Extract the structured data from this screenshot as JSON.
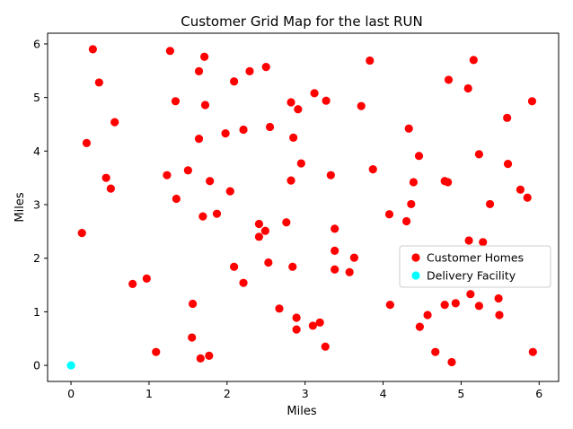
{
  "chart_data": {
    "type": "scatter",
    "title": "Customer Grid Map for the last RUN",
    "xlabel": "Miles",
    "ylabel": "Miles",
    "xlim": [
      -0.3,
      6.25
    ],
    "ylim": [
      -0.3,
      6.2
    ],
    "xticks": [
      0,
      1,
      2,
      3,
      4,
      5,
      6
    ],
    "yticks": [
      0,
      1,
      2,
      3,
      4,
      5,
      6
    ],
    "grid": false,
    "legend_position": "center-right",
    "series": [
      {
        "name": "Customer Homes",
        "color": "#ff0000",
        "points": [
          [
            0.28,
            5.9
          ],
          [
            1.27,
            5.87
          ],
          [
            1.71,
            5.76
          ],
          [
            0.36,
            5.28
          ],
          [
            1.64,
            5.49
          ],
          [
            2.29,
            5.49
          ],
          [
            2.5,
            5.57
          ],
          [
            2.09,
            5.3
          ],
          [
            3.83,
            5.69
          ],
          [
            5.16,
            5.7
          ],
          [
            4.84,
            5.33
          ],
          [
            5.09,
            5.17
          ],
          [
            3.12,
            5.08
          ],
          [
            3.27,
            4.94
          ],
          [
            2.82,
            4.91
          ],
          [
            2.91,
            4.78
          ],
          [
            3.72,
            4.84
          ],
          [
            1.34,
            4.93
          ],
          [
            1.72,
            4.86
          ],
          [
            0.56,
            4.54
          ],
          [
            5.91,
            4.93
          ],
          [
            5.59,
            4.62
          ],
          [
            2.55,
            4.45
          ],
          [
            2.21,
            4.4
          ],
          [
            1.98,
            4.33
          ],
          [
            1.64,
            4.23
          ],
          [
            2.85,
            4.25
          ],
          [
            4.33,
            4.42
          ],
          [
            0.2,
            4.15
          ],
          [
            4.46,
            3.91
          ],
          [
            5.23,
            3.94
          ],
          [
            2.95,
            3.77
          ],
          [
            5.6,
            3.76
          ],
          [
            3.87,
            3.66
          ],
          [
            1.5,
            3.64
          ],
          [
            1.23,
            3.55
          ],
          [
            3.33,
            3.55
          ],
          [
            0.45,
            3.5
          ],
          [
            1.78,
            3.44
          ],
          [
            2.82,
            3.45
          ],
          [
            4.39,
            3.42
          ],
          [
            4.79,
            3.44
          ],
          [
            4.83,
            3.42
          ],
          [
            0.51,
            3.3
          ],
          [
            2.04,
            3.25
          ],
          [
            5.76,
            3.28
          ],
          [
            1.35,
            3.11
          ],
          [
            5.85,
            3.13
          ],
          [
            4.36,
            3.01
          ],
          [
            5.37,
            3.01
          ],
          [
            1.87,
            2.83
          ],
          [
            4.08,
            2.82
          ],
          [
            1.69,
            2.78
          ],
          [
            2.76,
            2.67
          ],
          [
            4.3,
            2.69
          ],
          [
            2.41,
            2.64
          ],
          [
            3.38,
            2.55
          ],
          [
            2.49,
            2.51
          ],
          [
            0.14,
            2.47
          ],
          [
            2.41,
            2.4
          ],
          [
            5.1,
            2.33
          ],
          [
            5.28,
            2.3
          ],
          [
            3.38,
            2.14
          ],
          [
            3.63,
            2.01
          ],
          [
            2.09,
            1.84
          ],
          [
            2.53,
            1.92
          ],
          [
            2.84,
            1.84
          ],
          [
            3.38,
            1.79
          ],
          [
            3.57,
            1.74
          ],
          [
            0.97,
            1.62
          ],
          [
            0.79,
            1.52
          ],
          [
            2.21,
            1.54
          ],
          [
            5.12,
            1.33
          ],
          [
            5.48,
            1.25
          ],
          [
            1.56,
            1.15
          ],
          [
            4.09,
            1.13
          ],
          [
            4.79,
            1.13
          ],
          [
            4.93,
            1.16
          ],
          [
            5.23,
            1.11
          ],
          [
            2.67,
            1.06
          ],
          [
            4.57,
            0.94
          ],
          [
            5.49,
            0.94
          ],
          [
            2.89,
            0.89
          ],
          [
            3.19,
            0.8
          ],
          [
            3.1,
            0.74
          ],
          [
            4.47,
            0.72
          ],
          [
            2.89,
            0.67
          ],
          [
            1.55,
            0.52
          ],
          [
            3.26,
            0.35
          ],
          [
            1.09,
            0.25
          ],
          [
            4.67,
            0.25
          ],
          [
            5.92,
            0.25
          ],
          [
            1.77,
            0.18
          ],
          [
            1.66,
            0.13
          ],
          [
            4.88,
            0.06
          ]
        ]
      },
      {
        "name": "Delivery Facility",
        "color": "#00ffff",
        "points": [
          [
            0,
            0
          ]
        ]
      }
    ]
  }
}
